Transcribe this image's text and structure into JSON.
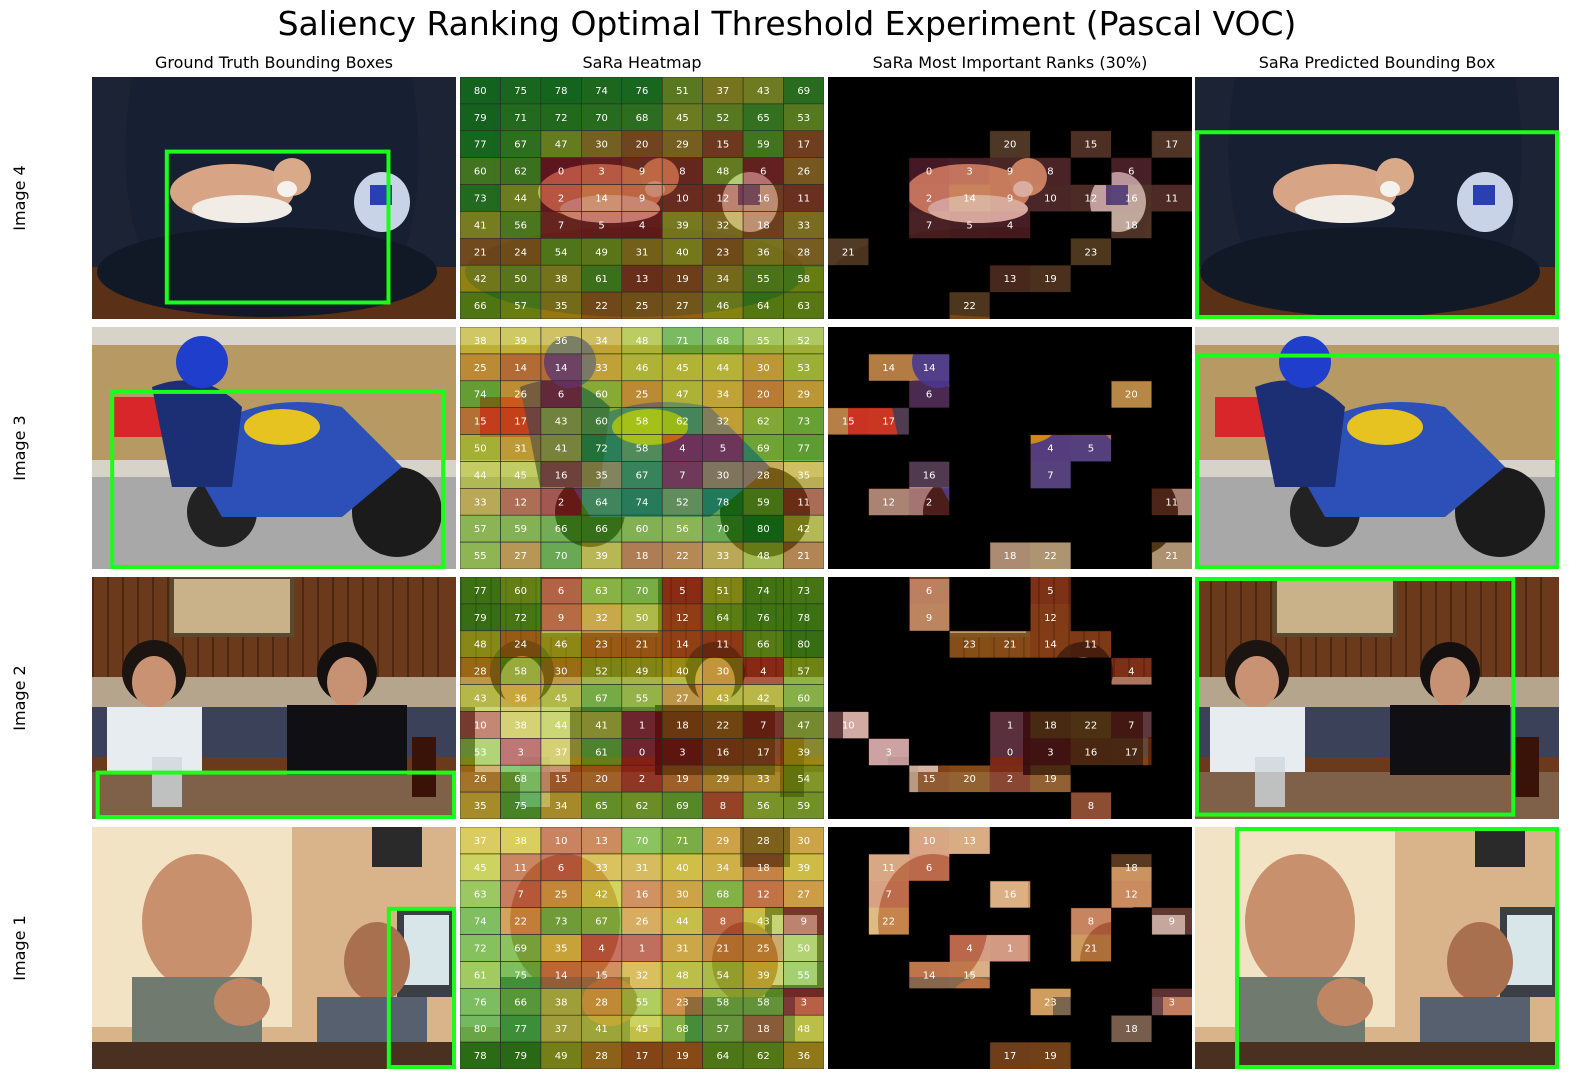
{
  "title": "Saliency Ranking Optimal Threshold Experiment (Pascal VOC)",
  "columns": [
    "Ground Truth Bounding Boxes",
    "SaRa Heatmap",
    "SaRa Most Important Ranks (30%)",
    "SaRa Predicted Bounding Box"
  ],
  "rows": [
    {
      "label": "Image 4",
      "scene": "cat",
      "ranks": [
        [
          80,
          75,
          78,
          74,
          76,
          51,
          37,
          43,
          69
        ],
        [
          79,
          71,
          72,
          70,
          68,
          45,
          52,
          65,
          53
        ],
        [
          77,
          67,
          47,
          30,
          20,
          29,
          15,
          59,
          17
        ],
        [
          60,
          62,
          0,
          3,
          9,
          8,
          48,
          6,
          26
        ],
        [
          73,
          44,
          2,
          14,
          9,
          10,
          12,
          16,
          11
        ],
        [
          41,
          56,
          7,
          5,
          4,
          39,
          32,
          18,
          33
        ],
        [
          21,
          24,
          54,
          49,
          31,
          40,
          23,
          36,
          28
        ],
        [
          42,
          50,
          38,
          61,
          13,
          19,
          34,
          55,
          58
        ],
        [
          66,
          57,
          35,
          22,
          25,
          27,
          46,
          64,
          63
        ]
      ]
    },
    {
      "label": "Image 3",
      "scene": "motorbike",
      "ranks": [
        [
          38,
          39,
          36,
          34,
          48,
          71,
          68,
          55,
          52
        ],
        [
          25,
          14,
          14,
          33,
          46,
          45,
          44,
          30,
          53
        ],
        [
          74,
          26,
          6,
          60,
          25,
          47,
          34,
          20,
          29
        ],
        [
          15,
          17,
          43,
          60,
          58,
          62,
          32,
          62,
          73
        ],
        [
          50,
          31,
          41,
          72,
          58,
          4,
          5,
          69,
          77
        ],
        [
          44,
          45,
          16,
          35,
          67,
          7,
          30,
          28,
          35
        ],
        [
          33,
          12,
          2,
          64,
          74,
          52,
          78,
          59,
          11
        ],
        [
          57,
          59,
          66,
          66,
          60,
          56,
          70,
          80,
          42
        ],
        [
          55,
          27,
          70,
          39,
          18,
          22,
          33,
          48,
          21
        ]
      ]
    },
    {
      "label": "Image 2",
      "scene": "people",
      "ranks": [
        [
          77,
          60,
          6,
          63,
          70,
          5,
          51,
          74,
          73
        ],
        [
          79,
          72,
          9,
          32,
          50,
          12,
          64,
          76,
          78
        ],
        [
          48,
          24,
          46,
          23,
          21,
          14,
          11,
          66,
          80
        ],
        [
          28,
          58,
          30,
          52,
          49,
          40,
          30,
          4,
          57
        ],
        [
          43,
          36,
          45,
          67,
          55,
          27,
          43,
          42,
          60
        ],
        [
          10,
          38,
          44,
          41,
          1,
          18,
          22,
          7,
          47
        ],
        [
          53,
          3,
          37,
          61,
          0,
          3,
          16,
          17,
          39
        ],
        [
          26,
          68,
          15,
          20,
          2,
          19,
          29,
          33,
          54
        ],
        [
          35,
          75,
          34,
          65,
          62,
          69,
          8,
          56,
          59
        ]
      ]
    },
    {
      "label": "Image 1",
      "scene": "men",
      "ranks": [
        [
          37,
          38,
          10,
          13,
          70,
          71,
          29,
          28,
          30
        ],
        [
          45,
          11,
          6,
          33,
          31,
          40,
          34,
          18,
          39
        ],
        [
          63,
          7,
          25,
          42,
          16,
          30,
          68,
          12,
          27
        ],
        [
          74,
          22,
          73,
          67,
          26,
          44,
          8,
          43,
          9
        ],
        [
          72,
          69,
          35,
          4,
          1,
          31,
          21,
          25,
          50
        ],
        [
          61,
          75,
          14,
          15,
          32,
          48,
          54,
          39,
          55
        ],
        [
          76,
          66,
          38,
          28,
          55,
          23,
          58,
          58,
          3
        ],
        [
          80,
          77,
          37,
          41,
          45,
          68,
          57,
          18,
          48
        ],
        [
          78,
          79,
          49,
          28,
          17,
          19,
          64,
          62,
          36
        ]
      ]
    }
  ]
}
